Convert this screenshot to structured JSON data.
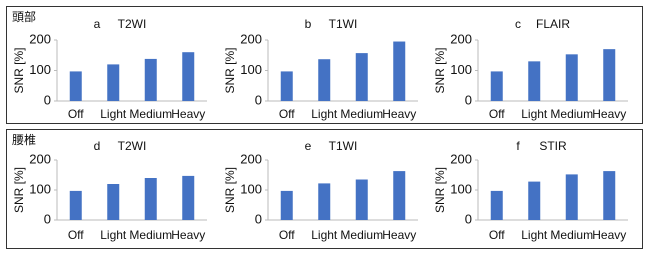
{
  "panels": [
    "頭部",
    "腰椎"
  ],
  "chart_data": [
    {
      "type": "bar",
      "label": "a",
      "title": "T2WI",
      "ylabel": "SNR [%]",
      "categories": [
        "Off",
        "Light",
        "Medium",
        "Heavy"
      ],
      "values": [
        97,
        120,
        138,
        160
      ],
      "color": "#4472c4",
      "ylim": [
        0,
        200
      ],
      "yticks": [
        0,
        100,
        200
      ],
      "grid": false
    },
    {
      "type": "bar",
      "label": "b",
      "title": "T1WI",
      "ylabel": "SNR [%]",
      "categories": [
        "Off",
        "Light",
        "Medium",
        "Heavy"
      ],
      "values": [
        97,
        137,
        157,
        195
      ],
      "color": "#4472c4",
      "ylim": [
        0,
        200
      ],
      "yticks": [
        0,
        100,
        200
      ],
      "grid": false
    },
    {
      "type": "bar",
      "label": "c",
      "title": "FLAIR",
      "ylabel": "SNR [%]",
      "categories": [
        "Off",
        "Light",
        "Medium",
        "Heavy"
      ],
      "values": [
        97,
        130,
        153,
        170
      ],
      "color": "#4472c4",
      "ylim": [
        0,
        200
      ],
      "yticks": [
        0,
        100,
        200
      ],
      "grid": false
    },
    {
      "type": "bar",
      "label": "d",
      "title": "T2WI",
      "ylabel": "SNR [%]",
      "categories": [
        "Off",
        "Light",
        "Medium",
        "Heavy"
      ],
      "values": [
        97,
        120,
        140,
        147
      ],
      "color": "#4472c4",
      "ylim": [
        0,
        200
      ],
      "yticks": [
        0,
        100,
        200
      ],
      "grid": false
    },
    {
      "type": "bar",
      "label": "e",
      "title": "T1WI",
      "ylabel": "SNR [%]",
      "categories": [
        "Off",
        "Light",
        "Medium",
        "Heavy"
      ],
      "values": [
        97,
        122,
        135,
        163
      ],
      "color": "#4472c4",
      "ylim": [
        0,
        200
      ],
      "yticks": [
        0,
        100,
        200
      ],
      "grid": false
    },
    {
      "type": "bar",
      "label": "f",
      "title": "STIR",
      "ylabel": "SNR [%]",
      "categories": [
        "Off",
        "Light",
        "Medium",
        "Heavy"
      ],
      "values": [
        97,
        128,
        152,
        163
      ],
      "color": "#4472c4",
      "ylim": [
        0,
        200
      ],
      "yticks": [
        0,
        100,
        200
      ],
      "grid": false
    }
  ]
}
